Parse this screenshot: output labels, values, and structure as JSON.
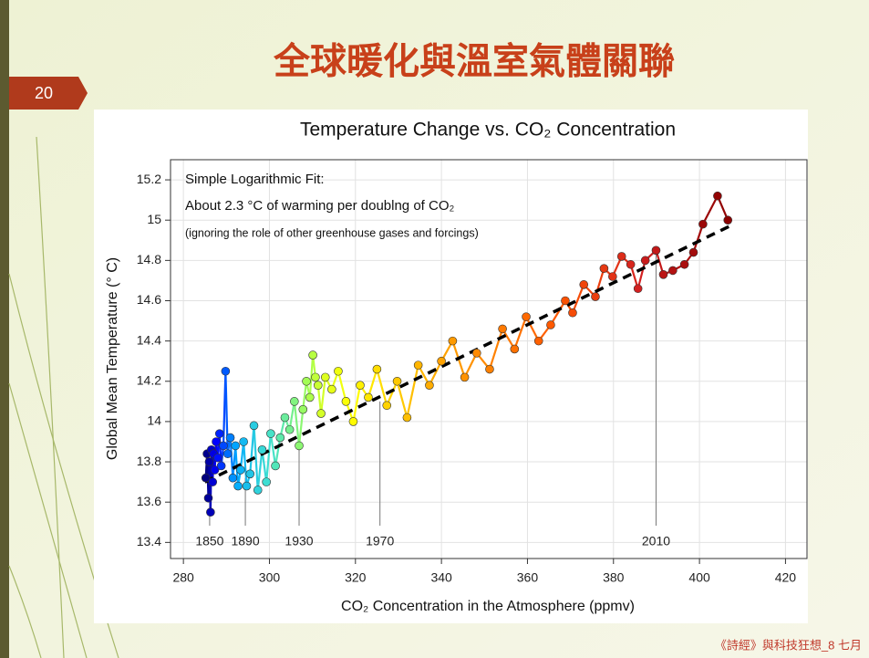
{
  "slide": {
    "title": "全球暖化與溫室氣體關聯",
    "page_number": "20",
    "footer": "《詩經》與科技狂想_8 七月"
  },
  "chart_data": {
    "type": "line",
    "title": "Temperature Change vs. CO₂ Concentration",
    "x_label": "CO₂ Concentration in the Atmosphere (ppmv)",
    "y_label": "Global Mean Temperature (° C)",
    "annotations": [
      "Simple Logarithmic Fit:",
      "About 2.3 °C of warming per doublng of CO₂",
      "(ignoring the role of other greenhouse gases and forcings)"
    ],
    "xlim": [
      277,
      425
    ],
    "xticks": [
      280,
      300,
      320,
      340,
      360,
      380,
      400,
      420
    ],
    "ylim": [
      13.32,
      15.3
    ],
    "yticks": [
      13.4,
      13.6,
      13.8,
      14,
      14.2,
      14.4,
      14.6,
      14.8,
      15,
      15.2
    ],
    "grid": true,
    "colormap": [
      "#00007f",
      "#0000ff",
      "#00a8ff",
      "#40e0d0",
      "#a8ff50",
      "#ffff00",
      "#ffa500",
      "#ff5a00",
      "#d42020",
      "#8b0000"
    ],
    "series": [
      {
        "x": [
          285.2,
          285.5,
          285.8,
          286.0,
          286.3,
          286.5,
          286.8,
          287.0,
          287.3,
          287.6,
          288.0,
          288.4,
          288.8,
          289.3,
          289.8,
          290.3,
          290.9,
          291.5,
          292.1,
          292.7,
          293.3,
          294.0,
          294.7,
          295.5,
          296.4,
          297.3,
          298.3,
          299.3,
          300.3,
          301.4,
          302.5,
          303.6,
          304.7,
          305.8,
          306.9,
          307.8,
          308.6,
          309.4,
          310.1,
          310.7,
          311.3,
          312.0,
          313.0,
          314.5,
          316.0,
          317.8,
          319.5,
          321.1,
          323.0,
          325.0,
          327.3,
          329.7,
          332.0,
          334.6,
          337.2,
          340.0,
          342.6,
          345.4,
          348.2,
          351.2,
          354.2,
          357.0,
          359.7,
          362.6,
          365.4,
          368.8,
          370.5,
          373.1,
          375.8,
          377.8,
          379.8,
          381.9,
          384.0,
          385.7,
          387.4,
          389.9,
          391.6,
          393.8,
          396.5,
          398.6,
          400.8,
          404.2,
          406.6
        ],
        "values": [
          13.72,
          13.84,
          13.62,
          13.8,
          13.55,
          13.86,
          13.7,
          13.84,
          13.76,
          13.9,
          13.82,
          13.94,
          13.78,
          13.88,
          14.25,
          13.84,
          13.92,
          13.72,
          13.88,
          13.68,
          13.76,
          13.9,
          13.68,
          13.74,
          13.98,
          13.66,
          13.86,
          13.7,
          13.94,
          13.78,
          13.92,
          14.02,
          13.96,
          14.1,
          13.88,
          14.06,
          14.2,
          14.12,
          14.33,
          14.22,
          14.18,
          14.04,
          14.22,
          14.16,
          14.25,
          14.1,
          14.0,
          14.18,
          14.12,
          14.26,
          14.08,
          14.2,
          14.02,
          14.28,
          14.18,
          14.3,
          14.4,
          14.22,
          14.34,
          14.26,
          14.46,
          14.36,
          14.52,
          14.4,
          14.48,
          14.6,
          14.54,
          14.68,
          14.62,
          14.76,
          14.72,
          14.82,
          14.78,
          14.66,
          14.8,
          14.85,
          14.73,
          14.75,
          14.78,
          14.84,
          14.98,
          15.12,
          15.0
        ]
      }
    ],
    "fit_line": {
      "x": [
        285,
        407
      ],
      "values": [
        13.7,
        14.97
      ],
      "color": "#000000"
    },
    "year_markers": [
      {
        "label": "1850",
        "x": 286.1,
        "y": 13.58
      },
      {
        "label": "1890",
        "x": 294.4,
        "y": 13.72
      },
      {
        "label": "1930",
        "x": 306.9,
        "y": 13.86
      },
      {
        "label": "1970",
        "x": 325.7,
        "y": 14.1
      },
      {
        "label": "2010",
        "x": 389.9,
        "y": 14.85
      }
    ]
  }
}
